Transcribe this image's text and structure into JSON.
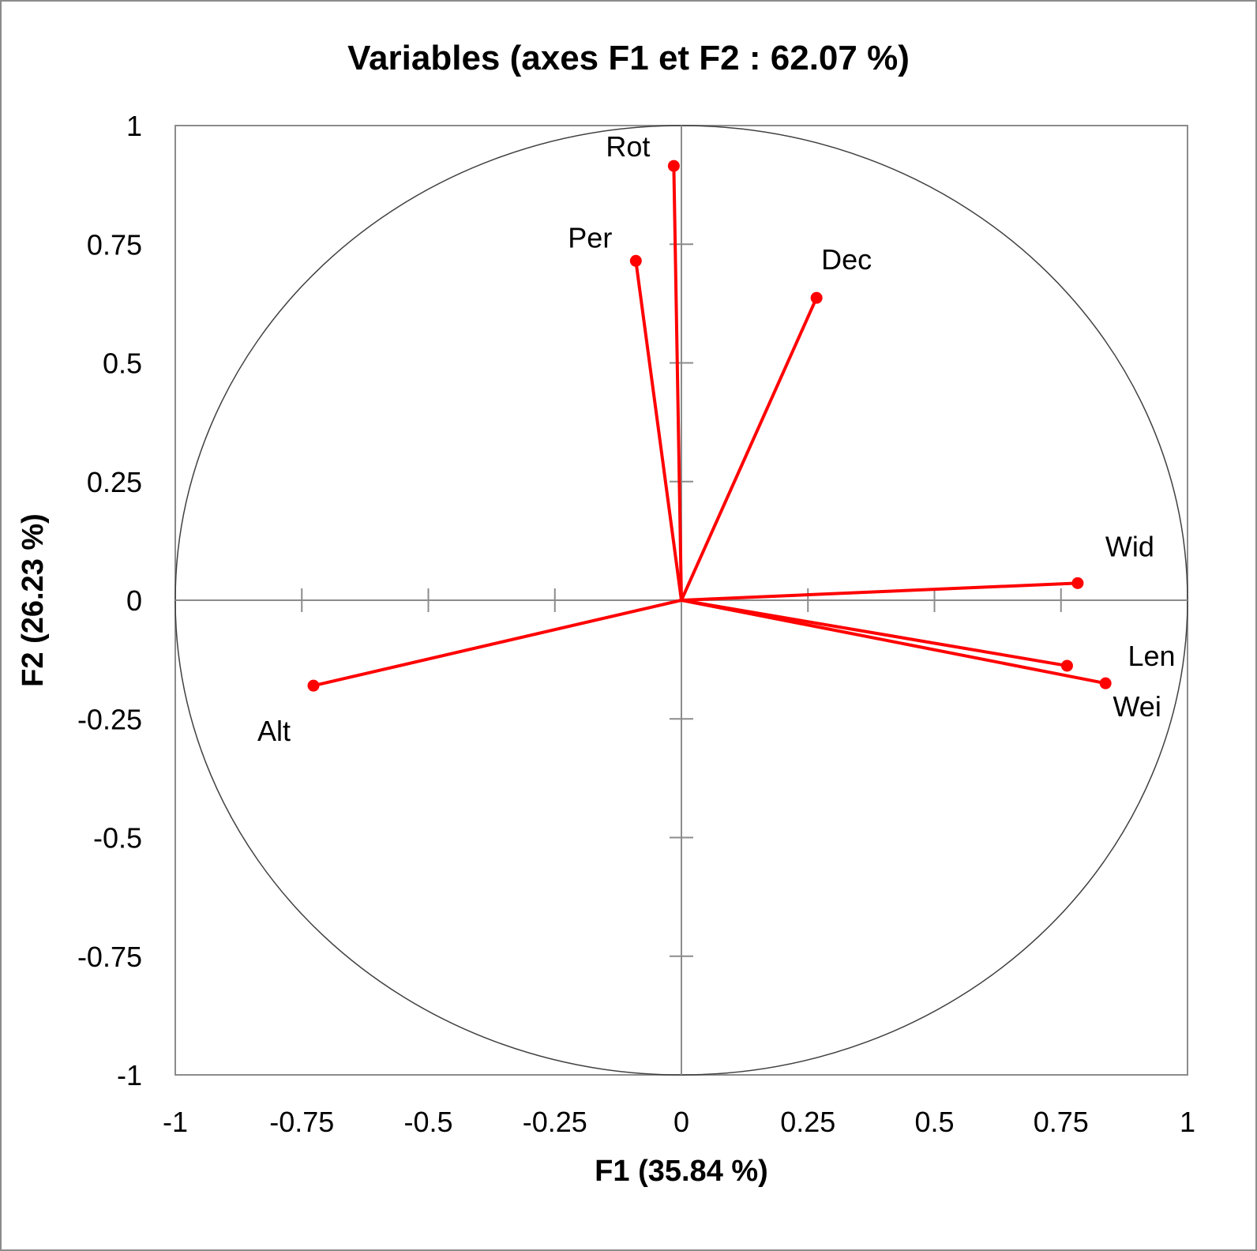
{
  "chart_data": {
    "type": "scatter",
    "title": "Variables (axes F1 et F2 : 62.07 %)",
    "xlabel": "F1 (35.84 %)",
    "ylabel": "F2 (26.23 %)",
    "xlim": [
      -1,
      1
    ],
    "ylim": [
      -1,
      1
    ],
    "x_ticks": [
      "-1",
      "-0.75",
      "-0.5",
      "-0.25",
      "0",
      "0.25",
      "0.5",
      "0.75",
      "1"
    ],
    "y_ticks": [
      "1",
      "0.75",
      "0.5",
      "0.25",
      "0",
      "-0.25",
      "-0.5",
      "-0.75",
      "-1"
    ],
    "correlation_circle": true,
    "grid": false,
    "series_color": "#ff0000",
    "points": [
      {
        "label": "Rot",
        "x": -0.015,
        "y": 0.915
      },
      {
        "label": "Per",
        "x": -0.09,
        "y": 0.715
      },
      {
        "label": "Dec",
        "x": 0.267,
        "y": 0.637
      },
      {
        "label": "Wid",
        "x": 0.783,
        "y": 0.036
      },
      {
        "label": "Len",
        "x": 0.762,
        "y": -0.138
      },
      {
        "label": "Wei",
        "x": 0.838,
        "y": -0.175
      },
      {
        "label": "Alt",
        "x": -0.727,
        "y": -0.18
      }
    ]
  }
}
